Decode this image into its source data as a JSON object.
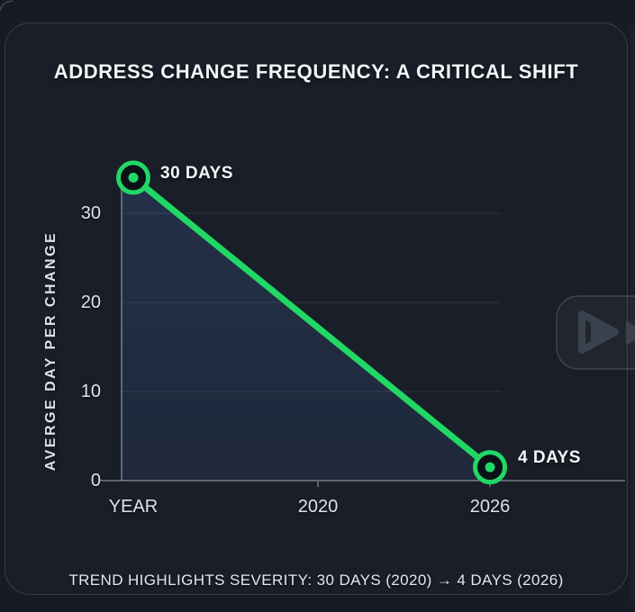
{
  "page": {
    "background": "#171b24",
    "card_background": "#191e28",
    "card_border_color": "rgba(140,156,180,0.26)"
  },
  "chart_data": {
    "type": "line",
    "title": "ADDRESS CHANGE FREQUENCY: A CRITICAL SHIFT",
    "ylabel": "AVERGE DAY PER CHANGE",
    "x_labels": [
      "YEAR",
      "2020",
      "2026"
    ],
    "y_ticks": [
      0,
      10,
      20,
      30
    ],
    "ylim": [
      0,
      35
    ],
    "grid": "horizontal-only",
    "legend": "none",
    "line_color": "#21d765",
    "marker_inner_fill": "#0c1118",
    "area_fill_color": "#334a76",
    "axis_color": "rgba(190,200,212,0.55)",
    "gridline_color": "rgba(170,184,198,0.15)",
    "series": [
      {
        "name": "average-days-per-address-change",
        "points": [
          {
            "year": "2020",
            "value": 30,
            "label": "30 DAYS",
            "x_slot": 0,
            "plot_value": 34
          },
          {
            "year": "2026",
            "value": 4,
            "label": "4 DAYS",
            "x_slot": 2,
            "plot_value": 1.5
          }
        ]
      }
    ],
    "annotation": "TREND HIGHLIGHTS SEVERITY: 30 DAYS (2020) → 4 DAYS (2026)"
  },
  "icons": {
    "play": "play-icon",
    "next": "next-arrow-icon"
  }
}
